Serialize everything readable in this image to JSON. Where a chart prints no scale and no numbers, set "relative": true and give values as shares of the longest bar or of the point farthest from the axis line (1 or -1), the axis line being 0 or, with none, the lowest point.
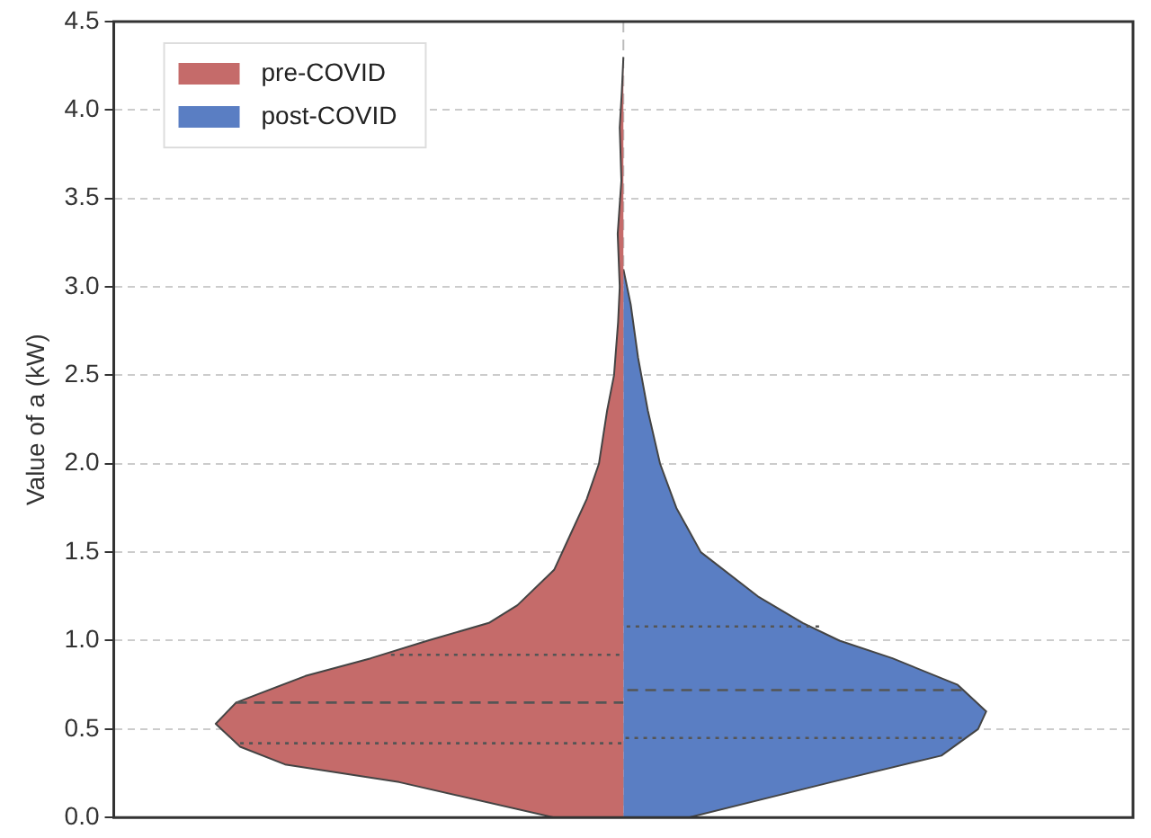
{
  "chart_data": {
    "type": "area",
    "orientation": "horizontal",
    "relative": true,
    "ylabel": "Value of a (kW)",
    "ylim": [
      0,
      4.5
    ],
    "yticks": [
      {
        "value": 0,
        "label": "0.0"
      },
      0.5,
      {
        "value": 1,
        "label": "1.0"
      },
      1.5,
      {
        "value": 2,
        "label": "2.0"
      },
      2.5,
      {
        "value": 3,
        "label": "3.0"
      },
      3.5,
      {
        "value": 4,
        "label": "4.0"
      },
      4.5
    ],
    "ref_lines": [
      {
        "axis": "x",
        "value": 0,
        "color": "#bbbbbb",
        "line_style": "dashed"
      }
    ],
    "grid": "y",
    "legend": "top left",
    "tick_labels": "y",
    "series": [
      {
        "name": "pre-COVID",
        "color": "#c56b6a",
        "x": [
          0,
          0.2,
          0.3,
          0.4,
          0.53,
          0.65,
          0.8,
          0.9,
          1.0,
          1.1,
          1.2,
          1.4,
          1.6,
          1.8,
          2.0,
          2.3,
          2.5,
          2.8,
          3.0,
          3.3,
          3.6,
          3.9,
          4.1,
          4.3
        ],
        "values": [
          -0.17,
          -0.55,
          -0.83,
          -0.94,
          -1.0,
          -0.95,
          -0.78,
          -0.62,
          -0.48,
          -0.33,
          -0.26,
          -0.17,
          -0.13,
          -0.09,
          -0.06,
          -0.04,
          -0.023,
          -0.013,
          -0.009,
          -0.014,
          -0.005,
          -0.009,
          -0.004,
          0
        ]
      },
      {
        "name": "post-COVID",
        "color": "#5a7ec3",
        "x": [
          0,
          0.2,
          0.35,
          0.5,
          0.6,
          0.75,
          0.9,
          1.0,
          1.1,
          1.25,
          1.5,
          1.75,
          2.0,
          2.3,
          2.6,
          2.9,
          3.1
        ],
        "values": [
          0.16,
          0.51,
          0.78,
          0.87,
          0.89,
          0.82,
          0.66,
          0.53,
          0.44,
          0.33,
          0.19,
          0.13,
          0.09,
          0.06,
          0.036,
          0.018,
          0
        ]
      },
      {
        "type": "line",
        "color": "#555555",
        "line_style": "dotted",
        "x": [
          0.42,
          0.42
        ],
        "values": [
          -0.94,
          0
        ]
      },
      {
        "type": "line",
        "color": "#555555",
        "line_style": "dashed",
        "x": [
          0.65,
          0.65
        ],
        "values": [
          -0.95,
          0
        ]
      },
      {
        "type": "line",
        "color": "#555555",
        "line_style": "dotted",
        "x": [
          0.92,
          0.92
        ],
        "values": [
          -0.57,
          0
        ]
      },
      {
        "type": "line",
        "color": "#555555",
        "line_style": "dotted",
        "x": [
          0.45,
          0.45
        ],
        "values": [
          0.83,
          0
        ]
      },
      {
        "type": "line",
        "color": "#555555",
        "line_style": "dashed",
        "x": [
          0.72,
          0.72
        ],
        "values": [
          0.83,
          0
        ]
      },
      {
        "type": "line",
        "color": "#555555",
        "line_style": "dotted",
        "x": [
          1.08,
          1.08
        ],
        "values": [
          0.48,
          0
        ]
      }
    ]
  }
}
